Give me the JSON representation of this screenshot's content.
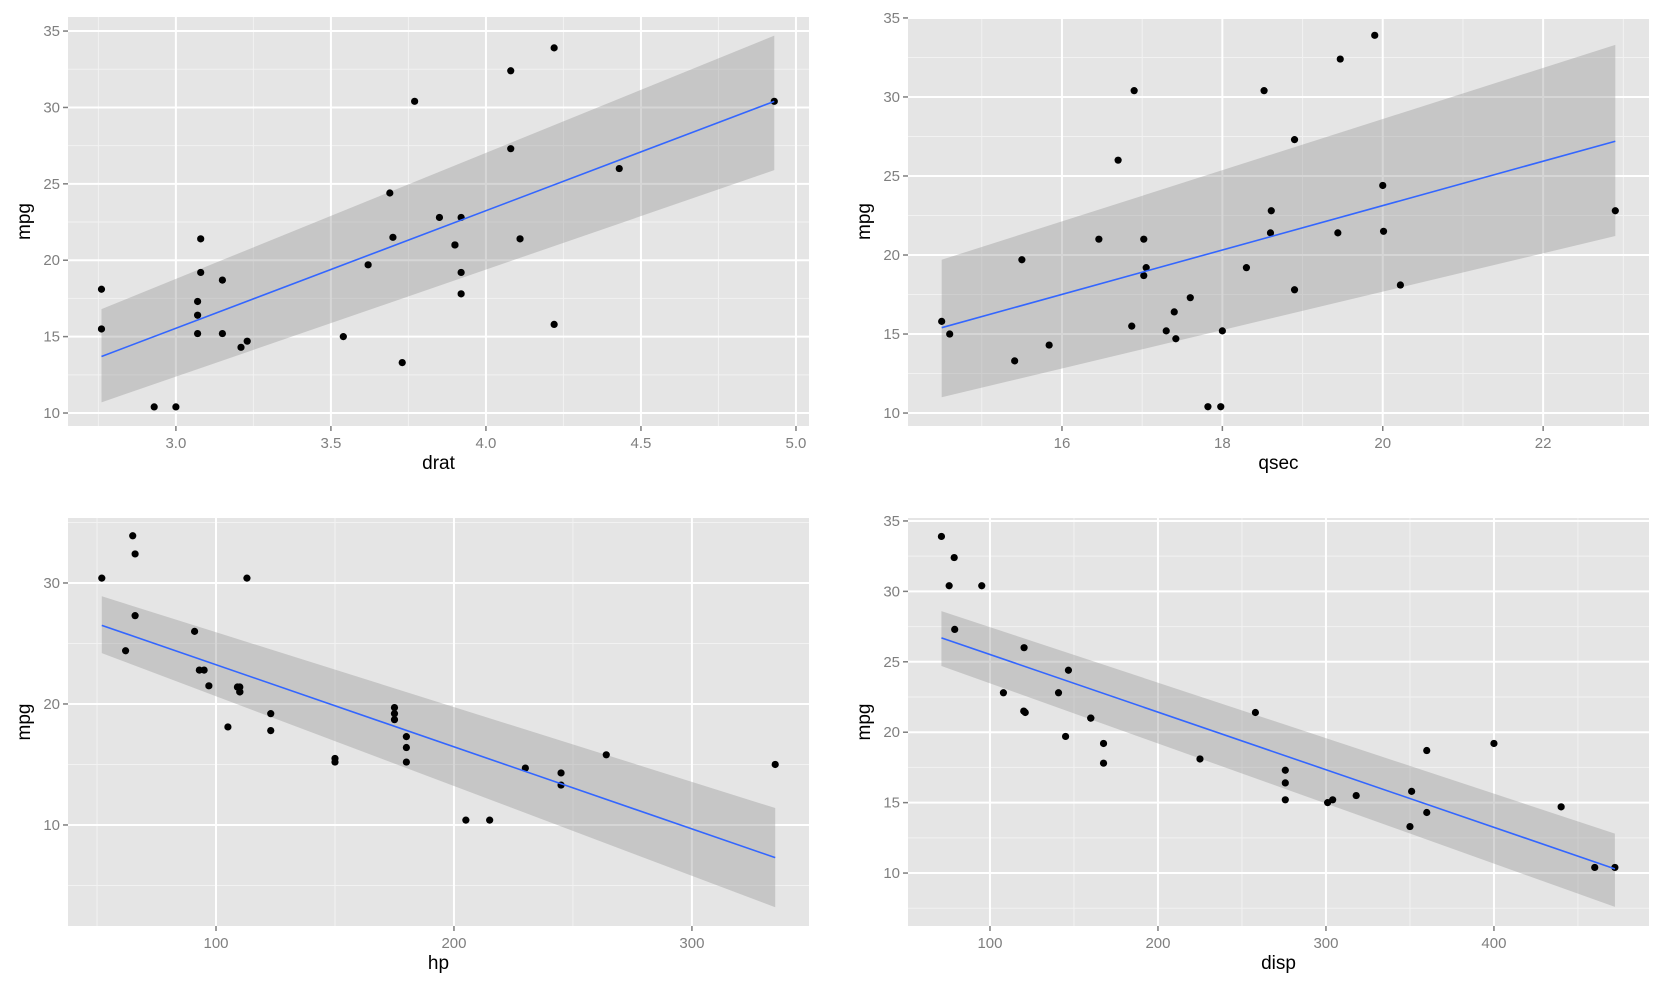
{
  "chart_data": [
    {
      "type": "scatter",
      "panel": "top-left",
      "xlabel": "drat",
      "ylabel": "mpg",
      "xlim": [
        2.652,
        5.042
      ],
      "ylim": [
        9.15,
        35.92
      ],
      "xticks": [
        3.0,
        3.5,
        4.0,
        4.5,
        5.0
      ],
      "xtick_labels": [
        "3.0",
        "3.5",
        "4.0",
        "4.5",
        "5.0"
      ],
      "yticks": [
        10,
        15,
        20,
        25,
        30,
        35
      ],
      "ytick_labels": [
        "10",
        "15",
        "20",
        "25",
        "30",
        "35"
      ],
      "grid": true,
      "x": [
        3.9,
        3.9,
        3.85,
        3.08,
        3.15,
        2.76,
        3.21,
        3.69,
        3.92,
        3.92,
        3.92,
        3.07,
        3.07,
        3.07,
        2.93,
        3.0,
        3.23,
        4.08,
        4.93,
        4.22,
        3.7,
        2.76,
        3.15,
        3.73,
        3.08,
        4.08,
        4.43,
        3.77,
        4.22,
        3.62,
        3.54,
        4.11
      ],
      "y": [
        21.0,
        21.0,
        22.8,
        21.4,
        18.7,
        18.1,
        14.3,
        24.4,
        22.8,
        19.2,
        17.8,
        16.4,
        17.3,
        15.2,
        10.4,
        10.4,
        14.7,
        32.4,
        30.4,
        33.9,
        21.5,
        15.5,
        15.2,
        13.3,
        19.2,
        27.3,
        26.0,
        30.4,
        15.8,
        19.7,
        15.0,
        21.4
      ],
      "smooth": {
        "method": "lm",
        "x": [
          2.76,
          4.93
        ],
        "fit": [
          13.7,
          30.4
        ],
        "lower": [
          10.7,
          25.9
        ],
        "upper": [
          16.8,
          34.7
        ]
      }
    },
    {
      "type": "scatter",
      "panel": "top-right",
      "xlabel": "qsec",
      "ylabel": "mpg",
      "xlim": [
        14.08,
        23.32
      ],
      "ylim": [
        9.18,
        35.06
      ],
      "xticks": [
        16,
        18,
        20,
        22
      ],
      "xtick_labels": [
        "16",
        "18",
        "20",
        "22"
      ],
      "yticks": [
        10,
        15,
        20,
        25,
        30,
        35
      ],
      "ytick_labels": [
        "10",
        "15",
        "20",
        "25",
        "30",
        "35"
      ],
      "grid": true,
      "x": [
        16.46,
        17.02,
        18.61,
        19.44,
        17.02,
        20.22,
        15.84,
        20.0,
        22.9,
        18.3,
        18.9,
        17.4,
        17.6,
        18.0,
        17.98,
        17.82,
        17.42,
        19.47,
        18.52,
        19.9,
        20.01,
        16.87,
        17.3,
        15.41,
        17.05,
        18.9,
        16.7,
        16.9,
        14.5,
        15.5,
        14.6,
        18.6
      ],
      "y": [
        21.0,
        21.0,
        22.8,
        21.4,
        18.7,
        18.1,
        14.3,
        24.4,
        22.8,
        19.2,
        17.8,
        16.4,
        17.3,
        15.2,
        10.4,
        10.4,
        14.7,
        32.4,
        30.4,
        33.9,
        21.5,
        15.5,
        15.2,
        13.3,
        19.2,
        27.3,
        26.0,
        30.4,
        15.8,
        19.7,
        15.0,
        21.4
      ],
      "smooth": {
        "method": "lm",
        "x": [
          14.5,
          22.9
        ],
        "fit": [
          15.4,
          27.2
        ],
        "lower": [
          11.0,
          21.2
        ],
        "upper": [
          19.7,
          33.3
        ]
      }
    },
    {
      "type": "scatter",
      "panel": "bottom-left",
      "xlabel": "hp",
      "ylabel": "mpg",
      "xlim": [
        37.8,
        349.2
      ],
      "ylim": [
        1.65,
        35.37
      ],
      "xticks": [
        100,
        200,
        300
      ],
      "xtick_labels": [
        "100",
        "200",
        "300"
      ],
      "yticks": [
        10,
        20,
        30
      ],
      "ytick_labels": [
        "10",
        "20",
        "30"
      ],
      "grid": true,
      "x": [
        110,
        110,
        93,
        110,
        175,
        105,
        245,
        62,
        95,
        123,
        123,
        180,
        180,
        180,
        205,
        215,
        230,
        66,
        52,
        65,
        97,
        150,
        150,
        245,
        175,
        66,
        91,
        113,
        264,
        175,
        335,
        109
      ],
      "y": [
        21.0,
        21.0,
        22.8,
        21.4,
        18.7,
        18.1,
        14.3,
        24.4,
        22.8,
        19.2,
        17.8,
        16.4,
        17.3,
        15.2,
        10.4,
        10.4,
        14.7,
        32.4,
        30.4,
        33.9,
        21.5,
        15.5,
        15.2,
        13.3,
        19.2,
        27.3,
        26.0,
        30.4,
        15.8,
        19.7,
        15.0,
        21.4
      ],
      "smooth": {
        "method": "lm",
        "x": [
          52,
          335
        ],
        "fit": [
          26.5,
          7.3
        ],
        "lower": [
          24.2,
          3.2
        ],
        "upper": [
          28.9,
          11.4
        ]
      }
    },
    {
      "type": "scatter",
      "panel": "bottom-right",
      "xlabel": "disp",
      "ylabel": "mpg",
      "xlim": [
        51.2,
        492.3
      ],
      "ylim": [
        6.24,
        35.21
      ],
      "xticks": [
        100,
        200,
        300,
        400
      ],
      "xtick_labels": [
        "100",
        "200",
        "300",
        "400"
      ],
      "yticks": [
        10,
        15,
        20,
        25,
        30,
        35
      ],
      "ytick_labels": [
        "10",
        "15",
        "20",
        "25",
        "30",
        "35"
      ],
      "grid": true,
      "x": [
        160,
        160,
        108,
        258,
        360,
        225,
        360,
        146.7,
        140.8,
        167.6,
        167.6,
        275.8,
        275.8,
        275.8,
        472,
        460,
        440,
        78.7,
        75.7,
        71.1,
        120.1,
        318,
        304,
        350,
        400,
        79,
        120.3,
        95.1,
        351,
        145,
        301,
        121
      ],
      "y": [
        21.0,
        21.0,
        22.8,
        21.4,
        18.7,
        18.1,
        14.3,
        24.4,
        22.8,
        19.2,
        17.8,
        16.4,
        17.3,
        15.2,
        10.4,
        10.4,
        14.7,
        32.4,
        30.4,
        33.9,
        21.5,
        15.5,
        15.2,
        13.3,
        19.2,
        27.3,
        26.0,
        30.4,
        15.8,
        19.7,
        15.0,
        21.4
      ],
      "smooth": {
        "method": "lm",
        "x": [
          71.1,
          472
        ],
        "fit": [
          26.7,
          10.3
        ],
        "lower": [
          24.7,
          7.6
        ],
        "upper": [
          28.6,
          12.8
        ]
      }
    }
  ],
  "colors": {
    "panel_bg": "#e5e5e5",
    "grid_major": "#ffffff",
    "grid_minor": "#f2f2f2",
    "point": "#000000",
    "fit_line": "#3366ff",
    "ribbon": "#999999",
    "tick_text": "#7f7f7f",
    "title_text": "#000000"
  }
}
